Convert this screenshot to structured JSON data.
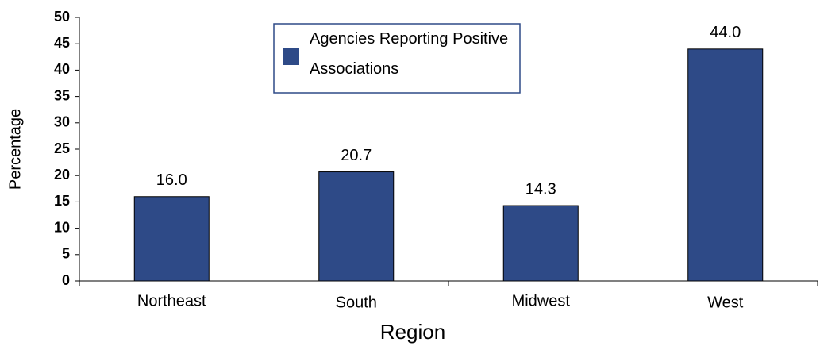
{
  "chart_data": {
    "type": "bar",
    "x_label": "Region",
    "y_label": "Percentage",
    "categories": [
      "Northeast",
      "South",
      "Midwest",
      "West"
    ],
    "series": [
      {
        "name": "Agencies Reporting Positive Associations",
        "color": "#2e4a87",
        "values": [
          16.0,
          20.7,
          14.3,
          44.0
        ],
        "value_labels": [
          "16.0",
          "20.7",
          "14.3",
          "44.0"
        ]
      }
    ],
    "ylim": [
      0,
      50
    ],
    "yticks": [
      0,
      5,
      10,
      15,
      20,
      25,
      30,
      35,
      40,
      45,
      50
    ],
    "grid": false,
    "legend": "top"
  }
}
